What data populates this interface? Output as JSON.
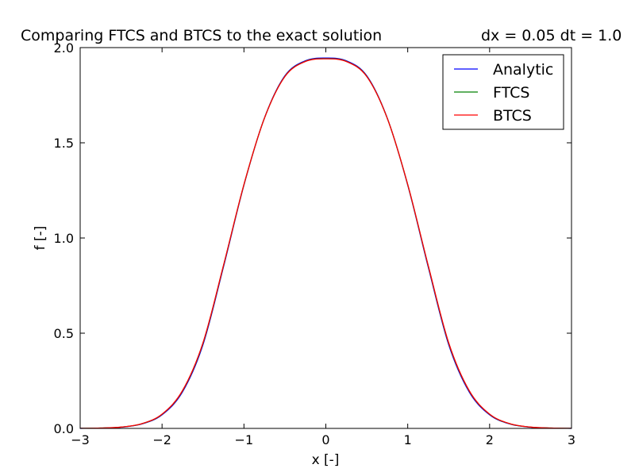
{
  "figure": {
    "title_left": "Comparing FTCS and BTCS to the exact solution",
    "title_right": "dx = 0.05 dt = 1.0"
  },
  "chart_data": {
    "type": "line",
    "title": "Comparing FTCS and BTCS to the exact solution",
    "subtitle": "dx = 0.05 dt = 1.0",
    "xlabel": "x [-]",
    "ylabel": "f [-]",
    "xlim": [
      -3,
      3
    ],
    "ylim": [
      0,
      2
    ],
    "xticks": [
      -3,
      -2,
      -1,
      0,
      1,
      2,
      3
    ],
    "xtick_labels": [
      "−3",
      "−2",
      "−1",
      "0",
      "1",
      "2",
      "3"
    ],
    "yticks": [
      0,
      0.5,
      1,
      1.5,
      2
    ],
    "ytick_labels": [
      "0.0",
      "0.5",
      "1.0",
      "1.5",
      "2.0"
    ],
    "grid": false,
    "legend_position": "top-right",
    "x": [
      -3.0,
      -2.75,
      -2.5,
      -2.25,
      -2.0,
      -1.75,
      -1.5,
      -1.25,
      -1.0,
      -0.75,
      -0.5,
      -0.25,
      0.0,
      0.25,
      0.5,
      0.75,
      1.0,
      1.25,
      1.5,
      1.75,
      2.0,
      2.25,
      2.5,
      2.75,
      3.0
    ],
    "series": [
      {
        "name": "Analytic",
        "color": "#0000ff",
        "values": [
          0.0003,
          0.0016,
          0.0062,
          0.0228,
          0.0715,
          0.192,
          0.44,
          0.848,
          1.278,
          1.63,
          1.852,
          1.931,
          1.945,
          1.931,
          1.852,
          1.63,
          1.278,
          0.848,
          0.44,
          0.192,
          0.0715,
          0.0228,
          0.0062,
          0.0016,
          0.0003
        ]
      },
      {
        "name": "FTCS",
        "color": "#008000",
        "values": [
          0.0004,
          0.0018,
          0.0068,
          0.024,
          0.074,
          0.197,
          0.447,
          0.854,
          1.28,
          1.629,
          1.849,
          1.928,
          1.942,
          1.928,
          1.849,
          1.629,
          1.28,
          0.854,
          0.447,
          0.197,
          0.074,
          0.024,
          0.0068,
          0.0018,
          0.0004
        ]
      },
      {
        "name": "BTCS",
        "color": "#ff0000",
        "values": [
          0.0004,
          0.0019,
          0.007,
          0.0245,
          0.075,
          0.199,
          0.45,
          0.856,
          1.281,
          1.629,
          1.848,
          1.927,
          1.941,
          1.927,
          1.848,
          1.629,
          1.281,
          0.856,
          0.45,
          0.199,
          0.075,
          0.0245,
          0.007,
          0.0019,
          0.0004
        ]
      }
    ]
  }
}
